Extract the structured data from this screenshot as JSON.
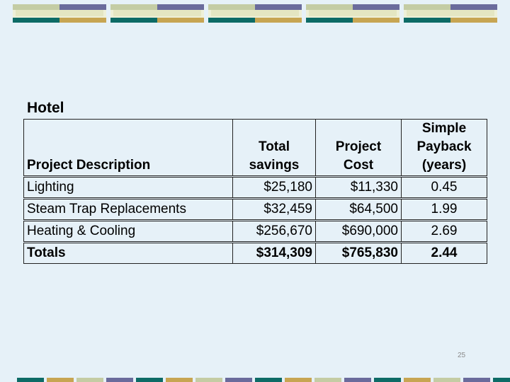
{
  "title": "Hotel",
  "table": {
    "header": [
      [
        "Project Description"
      ],
      [
        "Total",
        "savings"
      ],
      [
        "Project",
        "Cost"
      ],
      [
        "Simple",
        "Payback",
        "(years)"
      ]
    ],
    "rows": [
      [
        "Lighting",
        "$25,180",
        "$11,330",
        "0.45"
      ],
      [
        "Steam Trap Replacements",
        "$32,459",
        "$64,500",
        "1.99"
      ],
      [
        "Heating & Cooling",
        "$256,670",
        "$690,000",
        "2.69"
      ],
      [
        "Totals",
        "$314,309",
        "$765,830",
        "2.44"
      ]
    ]
  },
  "page_number": "25"
}
